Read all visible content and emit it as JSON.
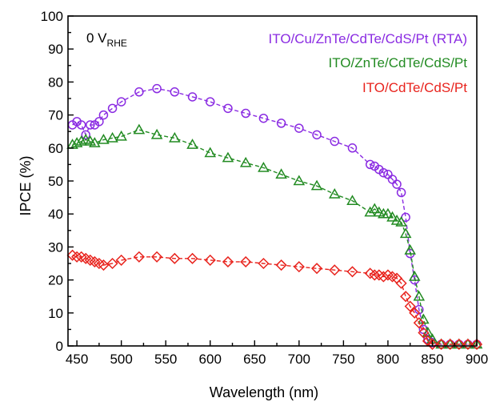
{
  "chart_data": {
    "type": "scatter",
    "xlabel": "Wavelength (nm)",
    "ylabel": "IPCE (%)",
    "xlim": [
      440,
      900
    ],
    "ylim": [
      0,
      100
    ],
    "xticks": [
      450,
      500,
      550,
      600,
      650,
      700,
      750,
      800,
      850,
      900
    ],
    "yticks": [
      0,
      10,
      20,
      30,
      40,
      50,
      60,
      70,
      80,
      90,
      100
    ],
    "annotation": {
      "main": "0 V",
      "sub": "RHE"
    },
    "legend_position": "top-right",
    "series": [
      {
        "name": "ITO/Cu/ZnTe/CdTe/CdS/Pt (RTA)",
        "color": "#8a2be2",
        "marker": "circle",
        "x": [
          445,
          450,
          455,
          460,
          465,
          470,
          475,
          480,
          490,
          500,
          520,
          540,
          560,
          580,
          600,
          620,
          640,
          660,
          680,
          700,
          720,
          740,
          760,
          780,
          785,
          790,
          795,
          800,
          805,
          810,
          815,
          820,
          825,
          830,
          835,
          840,
          845,
          850,
          860,
          870,
          880,
          890,
          900
        ],
        "y": [
          67,
          68,
          67,
          64,
          67,
          67,
          68,
          70,
          72,
          74,
          77,
          78,
          77,
          75.5,
          74,
          72,
          70.5,
          69,
          67.5,
          66,
          64,
          62,
          60,
          55,
          54.5,
          53.5,
          52.5,
          52,
          50.5,
          49,
          46.5,
          39,
          28,
          20,
          11,
          5,
          2,
          1,
          0.5,
          0.5,
          0.5,
          0.5,
          0.5
        ]
      },
      {
        "name": "ITO/ZnTe/CdTe/CdS/Pt",
        "color": "#228b22",
        "marker": "triangle",
        "x": [
          445,
          450,
          455,
          460,
          465,
          470,
          480,
          490,
          500,
          520,
          540,
          560,
          580,
          600,
          620,
          640,
          660,
          680,
          700,
          720,
          740,
          760,
          780,
          785,
          790,
          795,
          800,
          805,
          810,
          815,
          820,
          825,
          830,
          835,
          840,
          845,
          850,
          860,
          870,
          880,
          890,
          900
        ],
        "y": [
          61,
          61.5,
          62,
          62.5,
          62,
          61.5,
          62.5,
          63,
          63.5,
          65.5,
          64,
          63,
          61,
          58.5,
          57,
          55.5,
          54,
          52,
          50,
          48.5,
          46,
          44,
          40.5,
          41.5,
          40.5,
          40,
          40,
          39,
          38,
          37.5,
          34,
          29,
          21,
          15,
          8,
          4,
          2,
          0.5,
          0.5,
          0.5,
          0.5,
          0.5
        ]
      },
      {
        "name": "ITO/CdTe/CdS/Pt",
        "color": "#e8231d",
        "marker": "diamond",
        "x": [
          445,
          450,
          455,
          460,
          465,
          470,
          475,
          480,
          490,
          500,
          520,
          540,
          560,
          580,
          600,
          620,
          640,
          660,
          680,
          700,
          720,
          740,
          760,
          780,
          785,
          790,
          795,
          800,
          805,
          810,
          815,
          820,
          825,
          830,
          835,
          840,
          845,
          850,
          860,
          870,
          880,
          890,
          900
        ],
        "y": [
          27.5,
          27,
          27,
          26.5,
          26,
          25.5,
          25,
          24.5,
          25,
          26,
          27,
          27,
          26.5,
          26.5,
          26,
          25.5,
          25.5,
          25,
          24.5,
          24,
          23.5,
          23,
          22.5,
          22,
          21.5,
          21.5,
          21,
          21.5,
          21,
          20.5,
          19,
          15,
          12,
          10,
          7,
          4,
          1.5,
          0.5,
          0.5,
          0.5,
          0.5,
          0.5,
          0.5
        ]
      }
    ]
  }
}
